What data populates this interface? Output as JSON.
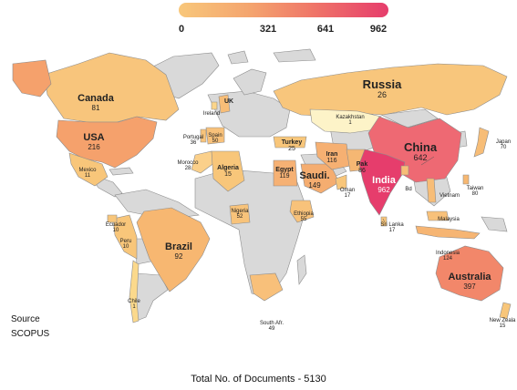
{
  "legend": {
    "min_label": "0",
    "t1_label": "321",
    "t2_label": "641",
    "max_label": "962",
    "colors": [
      "#f8c77a",
      "#f4a36e",
      "#ef7468",
      "#e63d6c"
    ]
  },
  "source": {
    "line1": "Source",
    "line2": "SCOPUS"
  },
  "total": "Total No. of Documents - 5130",
  "base_color": "#d9d9d9",
  "countries": {
    "russia": {
      "name": "Russia",
      "value": "26",
      "color": "#f8c67c"
    },
    "canada": {
      "name": "Canada",
      "value": "81",
      "color": "#f7bb77"
    },
    "usa": {
      "name": "USA",
      "value": "216",
      "color": "#f5a16c"
    },
    "china": {
      "name": "China",
      "value": "642",
      "color": "#ee6973"
    },
    "india": {
      "name": "India",
      "value": "962",
      "color": "#e63d6c"
    },
    "kazakhstan": {
      "name": "Kazakhstan",
      "value": "1",
      "color": "#fdf3c8"
    },
    "brazil": {
      "name": "Brazil",
      "value": "92",
      "color": "#f7b771"
    },
    "australia": {
      "name": "Australia",
      "value": "397",
      "color": "#f2876a"
    },
    "mexico": {
      "name": "Mexico",
      "value": "11",
      "color": "#f8c67a"
    },
    "algeria": {
      "name": "Algeria",
      "value": "15",
      "color": "#f8c67a"
    },
    "morocco": {
      "name": "Morocco",
      "value": "28"
    },
    "portugal": {
      "name": "Portugal",
      "value": "36"
    },
    "spain": {
      "name": "Spain",
      "value": "50"
    },
    "uk": {
      "name": "UK",
      "value": ""
    },
    "ireland": {
      "name": "Ireland",
      "value": ""
    },
    "turkey": {
      "name": "Turkey",
      "value": "25"
    },
    "iran": {
      "name": "Iran",
      "value": "116"
    },
    "egypt": {
      "name": "Egypt",
      "value": "119"
    },
    "saudi": {
      "name": "Saudi.",
      "value": "149"
    },
    "pak": {
      "name": "Pak",
      "value": "86"
    },
    "oman": {
      "name": "Oman",
      "value": "17"
    },
    "srilanka": {
      "name": "Sri Lanka",
      "value": "17"
    },
    "bd": {
      "name": "Bd",
      "value": ""
    },
    "japan": {
      "name": "Japan",
      "value": "70"
    },
    "taiwan": {
      "name": "Taiwan",
      "value": "80"
    },
    "vietnam": {
      "name": "Vietnam",
      "value": ""
    },
    "malaysia": {
      "name": "Malaysia",
      "value": ""
    },
    "indonesia": {
      "name": "Indonesia",
      "value": "124"
    },
    "newzealand": {
      "name": "New Zeala",
      "value": "15"
    },
    "southafrica": {
      "name": "South Afr.",
      "value": "49"
    },
    "nigeria": {
      "name": "Nigeria",
      "value": "52"
    },
    "ethiopia": {
      "name": "Ethiopia",
      "value": "55"
    },
    "ecuador": {
      "name": "Ecuador",
      "value": "10"
    },
    "peru": {
      "name": "Peru",
      "value": "10"
    },
    "chile": {
      "name": "Chile",
      "value": "1"
    }
  }
}
